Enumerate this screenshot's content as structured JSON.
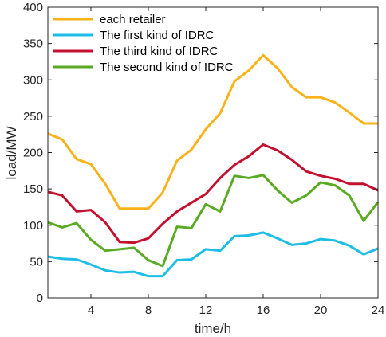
{
  "chart_data": {
    "type": "line",
    "title": "",
    "xlabel": "time/h",
    "ylabel": "load/MW",
    "xlim": [
      1,
      24
    ],
    "ylim": [
      0,
      400
    ],
    "xticks": [
      4,
      8,
      12,
      16,
      20,
      24
    ],
    "yticks": [
      0,
      50,
      100,
      150,
      200,
      250,
      300,
      350,
      400
    ],
    "grid": false,
    "legend": "top-left",
    "x": [
      1,
      2,
      3,
      4,
      5,
      6,
      7,
      8,
      9,
      10,
      11,
      12,
      13,
      14,
      15,
      16,
      17,
      18,
      19,
      20,
      21,
      22,
      23,
      24
    ],
    "series": [
      {
        "name": "each retailer",
        "color": "#f9b21a",
        "values": [
          226,
          218,
          191,
          184,
          157,
          123,
          123,
          123,
          145,
          189,
          204,
          232,
          254,
          298,
          313,
          334,
          316,
          290,
          276,
          276,
          269,
          255,
          240,
          240
        ]
      },
      {
        "name": "The first kind of IDRC",
        "color": "#1ebde8",
        "values": [
          57,
          54,
          53,
          46,
          38,
          35,
          36,
          30,
          30,
          52,
          53,
          67,
          65,
          85,
          86,
          90,
          82,
          73,
          75,
          81,
          79,
          72,
          60,
          68
        ]
      },
      {
        "name": "The third kind of IDRC",
        "color": "#c4102f",
        "values": [
          146,
          141,
          119,
          121,
          104,
          77,
          76,
          82,
          102,
          119,
          131,
          143,
          165,
          183,
          195,
          211,
          203,
          190,
          174,
          168,
          164,
          157,
          157,
          148
        ]
      },
      {
        "name": "The second kind of IDRC",
        "color": "#5aaa23",
        "values": [
          104,
          97,
          103,
          80,
          65,
          67,
          69,
          52,
          44,
          98,
          96,
          129,
          119,
          168,
          165,
          169,
          148,
          131,
          141,
          159,
          155,
          141,
          106,
          132
        ]
      }
    ]
  }
}
